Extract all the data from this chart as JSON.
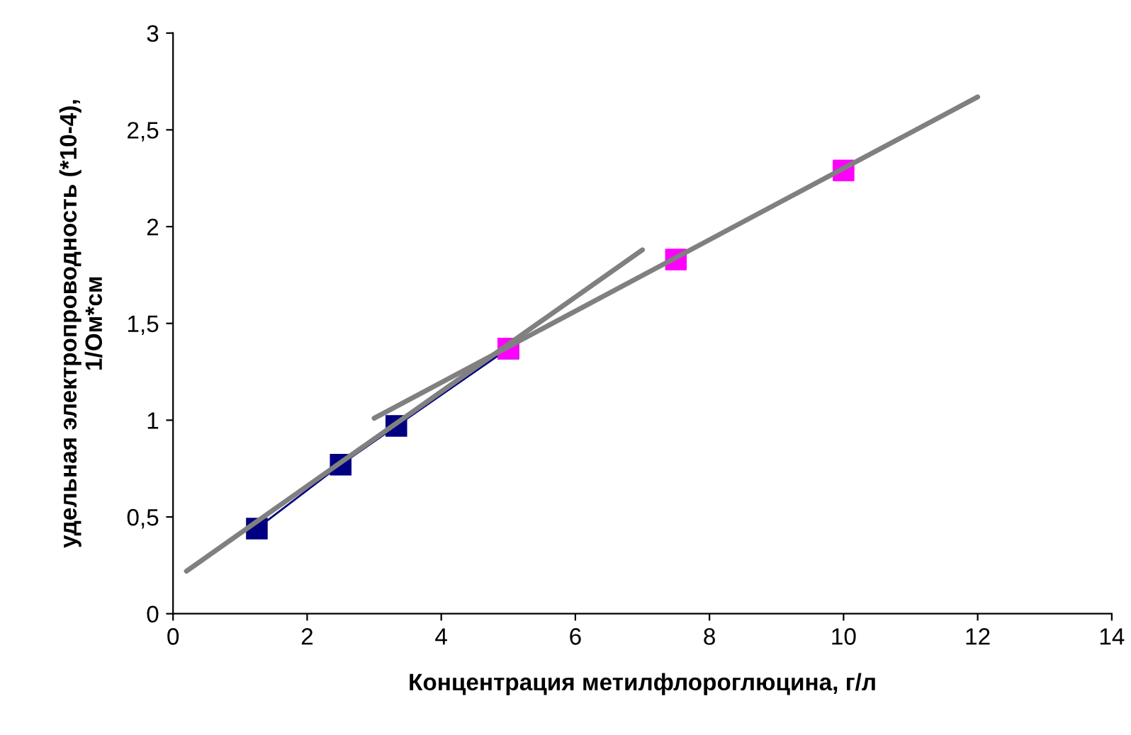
{
  "chart_data": {
    "type": "scatter",
    "xlabel": "Концентрация метилфлороглюцина, г/л",
    "ylabel": "удельная электропроводность (*10-4),\n1/Ом*см",
    "series": [
      {
        "type": "line",
        "color": "#000080",
        "marker": "square",
        "x": [
          1.25,
          2.5,
          3.33,
          5
        ],
        "values": [
          0.44,
          0.77,
          0.97,
          1.37
        ]
      },
      {
        "color": "#ff00ff",
        "marker": "square",
        "x": [
          5,
          7.5,
          10
        ],
        "values": [
          1.37,
          1.83,
          2.29
        ]
      },
      {
        "type": "line",
        "color": "#808080",
        "marker": "none",
        "x": [
          0.2,
          7.0
        ],
        "values": [
          0.22,
          1.88
        ]
      },
      {
        "type": "line",
        "color": "#808080",
        "marker": "none",
        "x": [
          3.0,
          12.0
        ],
        "values": [
          1.01,
          2.67
        ]
      }
    ],
    "xlim": [
      0,
      14
    ],
    "xticks": [
      0,
      2,
      4,
      6,
      8,
      10,
      12,
      14
    ],
    "ylim": [
      0,
      3
    ],
    "yticks": [
      0,
      {
        "value": 0.5,
        "label": "0,5"
      },
      1,
      {
        "value": 1.5,
        "label": "1,5"
      },
      2,
      {
        "value": 2.5,
        "label": "2,5"
      },
      3
    ],
    "grid": false,
    "legend": false
  }
}
